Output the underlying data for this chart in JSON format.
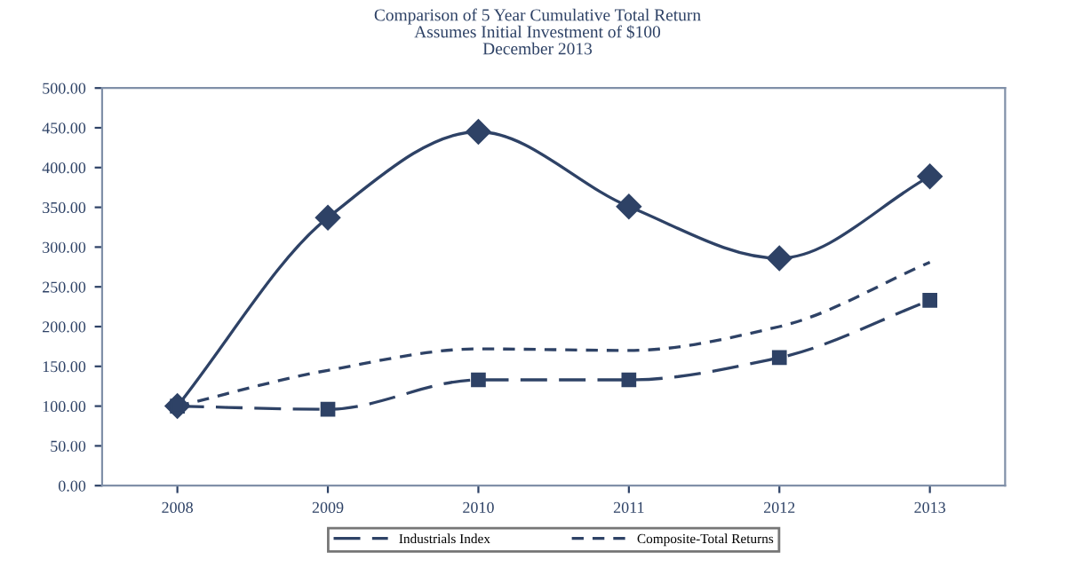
{
  "chart_data": {
    "type": "line",
    "title": "Comparison of 5 Year Cumulative Total Return\nAssumes Initial Investment of $100\nDecember 2013",
    "categories": [
      "2008",
      "2009",
      "2010",
      "2011",
      "2012",
      "2013"
    ],
    "series": [
      {
        "color": "#2e4266",
        "marker": "diamond",
        "line_style": "solid",
        "values": [
          100,
          337,
          445,
          351,
          286,
          389
        ]
      },
      {
        "name": "Industrials Index",
        "color": "#2e4266",
        "marker": "square",
        "line_style": "dashed",
        "values": [
          100,
          96,
          133,
          133,
          161,
          233
        ]
      },
      {
        "name": "Composite-Total Returns",
        "color": "#2e4266",
        "marker": "none",
        "line_style": "dotted",
        "values": [
          100,
          145,
          172,
          170,
          200,
          281
        ]
      }
    ],
    "ylim": [
      0,
      500
    ],
    "yticks": [
      {
        "value": 0,
        "label": "0.00"
      },
      {
        "value": 50,
        "label": "50.00"
      },
      {
        "value": 100,
        "label": "100.00"
      },
      {
        "value": 150,
        "label": "150.00"
      },
      {
        "value": 200,
        "label": "200.00"
      },
      {
        "value": 250,
        "label": "250.00"
      },
      {
        "value": 300,
        "label": "300.00"
      },
      {
        "value": 350,
        "label": "350.00"
      },
      {
        "value": 400,
        "label": "400.00"
      },
      {
        "value": 450,
        "label": "450.00"
      },
      {
        "value": 500,
        "label": "500.00"
      }
    ],
    "grid": false,
    "legend": "bottom"
  }
}
